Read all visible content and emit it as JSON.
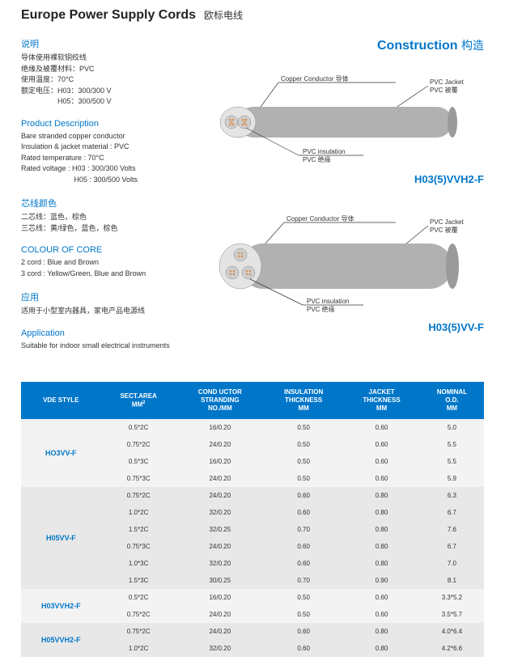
{
  "title": {
    "en": "Europe Power Supply Cords",
    "cn": "欧标电线"
  },
  "construction": {
    "en": "Construction",
    "cn": "构造"
  },
  "sections": {
    "shuoming": {
      "h": "说明",
      "lines": [
        "导体使用裸软铜绞线",
        "绝缘及被覆材料：PVC",
        "使用温度：70°C",
        "额定电压：H03：300/300 V",
        "　　　　　H05：300/500 V"
      ]
    },
    "productDesc": {
      "h": "Product Description",
      "lines": [
        "Bare stranded copper conductor",
        "Insulation & jacket material : PVC",
        "Rated temperature : 70°C",
        "Rated voltage : H03 : 300/300 Volts",
        "　　　　　　　  H05 : 300/500 Volts"
      ]
    },
    "coreCn": {
      "h": "芯线颜色",
      "lines": [
        "二芯线：蓝色，棕色",
        "三芯线：黄/绿色，蓝色，棕色"
      ]
    },
    "coreEn": {
      "h": "COLOUR OF CORE",
      "lines": [
        "2 cord : Blue and Brown",
        "3 cord : Yellow/Green, Blue and Brown"
      ]
    },
    "appCn": {
      "h": "应用",
      "lines": [
        "适用于小型室内器具，家电产品电源线"
      ]
    },
    "appEn": {
      "h": "Application",
      "lines": [
        "Suitable for indoor small electrical instruments"
      ]
    }
  },
  "diagrams": {
    "d1": {
      "copperLabel": "Copper Conductor 导体",
      "jacketLabel1": "PVC Jacket",
      "jacketLabel2": "PVC 被覆",
      "insLabel1": "PVC insulation",
      "insLabel2": "PVC 绝缘",
      "model": "H03(5)VVH2-F"
    },
    "d2": {
      "copperLabel": "Copper Conductor 导体",
      "jacketLabel1": "PVC Jacket",
      "jacketLabel2": "PVC 被覆",
      "insLabel1": "PVC insulation",
      "insLabel2": "PVC 绝缘",
      "model": "H03(5)VV-F"
    }
  },
  "table": {
    "headers": [
      "VDE STYLE",
      "SECT.AREA\nMM²",
      "COND UCTOR\nSTRANDING\nNO./MM",
      "INSULATION\nTHICKNESS\nMM",
      "JACKET\nTHICKNESS\nMM",
      "NOMINAL\nO.D.\nMM"
    ],
    "groups": [
      {
        "style": "HO3VV-F",
        "alt": true,
        "rows": [
          [
            "0.5*2C",
            "16/0.20",
            "0.50",
            "0.60",
            "5.0"
          ],
          [
            "0.75*2C",
            "24/0.20",
            "0.50",
            "0.60",
            "5.5"
          ],
          [
            "0.5*3C",
            "16/0.20",
            "0.50",
            "0.60",
            "5.5"
          ],
          [
            "0.75*3C",
            "24/0.20",
            "0.50",
            "0.60",
            "5.9"
          ]
        ]
      },
      {
        "style": "H05VV-F",
        "alt": false,
        "rows": [
          [
            "0.75*2C",
            "24/0.20",
            "0.60",
            "0.80",
            "6.3"
          ],
          [
            "1.0*2C",
            "32/0.20",
            "0.60",
            "0.80",
            "6.7"
          ],
          [
            "1.5*2C",
            "32/0.25",
            "0.70",
            "0.80",
            "7.6"
          ],
          [
            "0.75*3C",
            "24/0.20",
            "0.60",
            "0.80",
            "6.7"
          ],
          [
            "1.0*3C",
            "32/0.20",
            "0.60",
            "0.80",
            "7.0"
          ],
          [
            "1.5*3C",
            "30/0.25",
            "0.70",
            "0.90",
            "8.1"
          ]
        ]
      },
      {
        "style": "H03VVH2-F",
        "alt": true,
        "rows": [
          [
            "0.5*2C",
            "16/0.20",
            "0.50",
            "0.60",
            "3.3*5.2"
          ],
          [
            "0.75*2C",
            "24/0.20",
            "0.50",
            "0.60",
            "3.5*5.7"
          ]
        ]
      },
      {
        "style": "H05VVH2-F",
        "alt": false,
        "rows": [
          [
            "0.75*2C",
            "24/0.20",
            "0.60",
            "0.80",
            "4.0*6.4"
          ],
          [
            "1.0*2C",
            "32/0.20",
            "0.60",
            "0.80",
            "4.2*6.6"
          ]
        ]
      }
    ]
  },
  "colors": {
    "brand": "#0076c9",
    "cableBody": "#b1b1b1",
    "cableFace": "#e4e4e4",
    "copper": "#d49a66",
    "line": "#333333"
  }
}
